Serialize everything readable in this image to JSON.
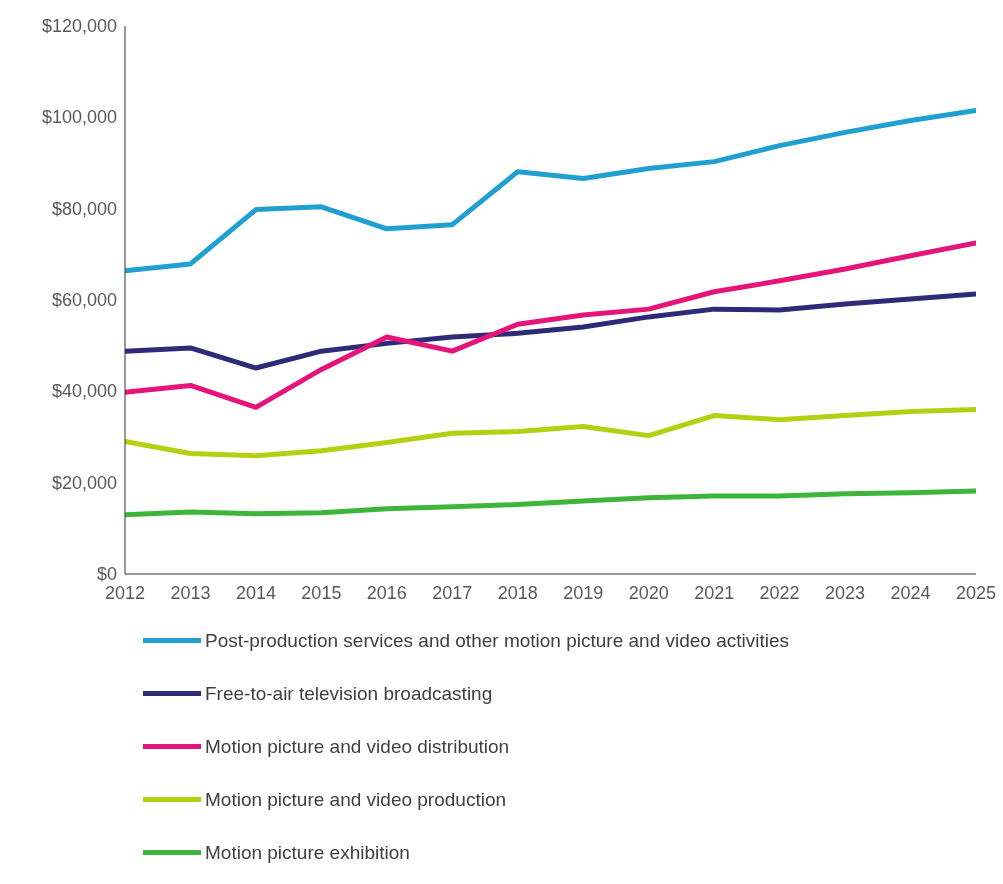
{
  "chart_data": {
    "type": "line",
    "categories": [
      "2012",
      "2013",
      "2014",
      "2015",
      "2016",
      "2017",
      "2018",
      "2019",
      "2020",
      "2021",
      "2022",
      "2023",
      "2024",
      "2025"
    ],
    "series": [
      {
        "name": "Post-production services and other motion picture and video activities",
        "color": "#1fa0d0",
        "values": [
          66400,
          67900,
          79800,
          80400,
          75600,
          76500,
          88100,
          86600,
          88800,
          90300,
          93800,
          96700,
          99300,
          101500
        ]
      },
      {
        "name": "Free-to-air television broadcasting",
        "color": "#2e2a77",
        "values": [
          48800,
          49500,
          45100,
          48800,
          50500,
          51900,
          52700,
          54100,
          56300,
          58000,
          57800,
          59100,
          60200,
          61300
        ]
      },
      {
        "name": "Motion picture and video distribution",
        "color": "#e5147a",
        "values": [
          39800,
          41300,
          36500,
          44800,
          51900,
          48800,
          54700,
          56700,
          58000,
          61800,
          64200,
          66800,
          69700,
          72500
        ]
      },
      {
        "name": "Motion picture and video production",
        "color": "#b5cf12",
        "values": [
          29000,
          26400,
          25900,
          27000,
          28800,
          30800,
          31200,
          32300,
          30300,
          34700,
          33800,
          34700,
          35600,
          36000
        ]
      },
      {
        "name": "Motion picture exhibition",
        "color": "#3db53a",
        "values": [
          13000,
          13600,
          13200,
          13400,
          14300,
          14700,
          15200,
          16000,
          16700,
          17100,
          17100,
          17600,
          17800,
          18200
        ]
      }
    ],
    "ylim": [
      0,
      120000
    ],
    "yticks": [
      {
        "value": 0,
        "label": "$0"
      },
      {
        "value": 20000,
        "label": "$20,000"
      },
      {
        "value": 40000,
        "label": "$40,000"
      },
      {
        "value": 60000,
        "label": "$60,000"
      },
      {
        "value": 80000,
        "label": "$80,000"
      },
      {
        "value": 100000,
        "label": "$100,000"
      },
      {
        "value": 120000,
        "label": "$120,000"
      }
    ],
    "grid": false,
    "legend": "bottom",
    "marker": "none",
    "line_style": "solid"
  }
}
